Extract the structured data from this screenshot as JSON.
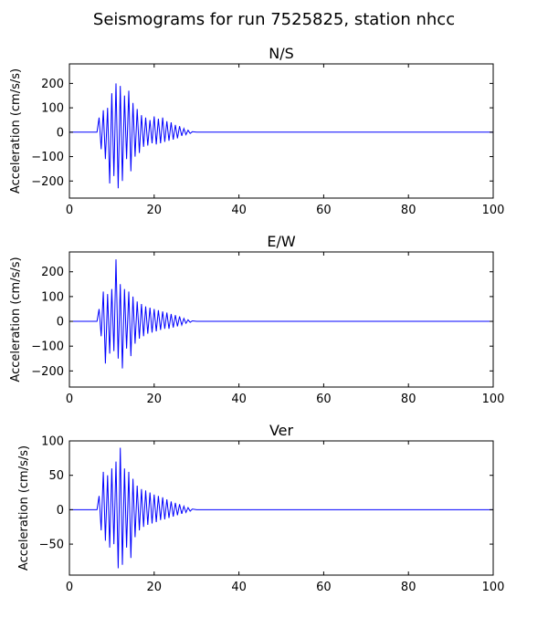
{
  "page": {
    "title": "Seismograms for run 7525825, station nhcc"
  },
  "colors": {
    "trace": "#0000ff",
    "axes": "#000000",
    "background": "#ffffff"
  },
  "chart_data": [
    {
      "type": "line",
      "title": "N/S",
      "xlabel": "",
      "ylabel": "Acceleration (cm/s/s)",
      "xlim": [
        0,
        100
      ],
      "ylim": [
        -270,
        280
      ],
      "xticks": [
        0,
        20,
        40,
        60,
        80,
        100
      ],
      "yticks": [
        -200,
        -100,
        0,
        100,
        200
      ],
      "grid": false,
      "series": [
        {
          "color": "#0000ff",
          "x": [
            0,
            6.5,
            7.0,
            7.5,
            8.0,
            8.5,
            9.0,
            9.5,
            10.0,
            10.5,
            11.0,
            11.5,
            12.0,
            12.5,
            13.0,
            13.5,
            14.0,
            14.5,
            15.0,
            15.5,
            16.0,
            16.5,
            17.0,
            17.5,
            18.0,
            18.5,
            19.0,
            19.5,
            20.0,
            20.5,
            21.0,
            21.5,
            22.0,
            22.5,
            23.0,
            23.5,
            24.0,
            24.5,
            25.0,
            25.5,
            26.0,
            26.5,
            27.0,
            27.5,
            28.0,
            28.5,
            29.0,
            30.0,
            100
          ],
          "y": [
            0,
            0,
            60,
            -70,
            90,
            -110,
            100,
            -210,
            160,
            -180,
            200,
            -230,
            190,
            -200,
            150,
            -110,
            170,
            -160,
            120,
            -100,
            95,
            -85,
            70,
            -60,
            60,
            -55,
            50,
            -45,
            65,
            -50,
            55,
            -45,
            60,
            -40,
            45,
            -35,
            40,
            -30,
            30,
            -25,
            25,
            -15,
            15,
            -10,
            8,
            -5,
            2,
            0,
            0
          ]
        }
      ]
    },
    {
      "type": "line",
      "title": "E/W",
      "xlabel": "",
      "ylabel": "Acceleration (cm/s/s)",
      "xlim": [
        0,
        100
      ],
      "ylim": [
        -265,
        280
      ],
      "xticks": [
        0,
        20,
        40,
        60,
        80,
        100
      ],
      "yticks": [
        -200,
        -100,
        0,
        100,
        200
      ],
      "grid": false,
      "series": [
        {
          "color": "#0000ff",
          "x": [
            0,
            6.5,
            7.0,
            7.5,
            8.0,
            8.5,
            9.0,
            9.5,
            10.0,
            10.5,
            11.0,
            11.5,
            12.0,
            12.5,
            13.0,
            13.5,
            14.0,
            14.5,
            15.0,
            15.5,
            16.0,
            16.5,
            17.0,
            17.5,
            18.0,
            18.5,
            19.0,
            19.5,
            20.0,
            20.5,
            21.0,
            21.5,
            22.0,
            22.5,
            23.0,
            23.5,
            24.0,
            24.5,
            25.0,
            25.5,
            26.0,
            26.5,
            27.0,
            27.5,
            28.0,
            28.5,
            29.0,
            30.0,
            100
          ],
          "y": [
            0,
            0,
            50,
            -60,
            120,
            -170,
            110,
            -130,
            130,
            -120,
            250,
            -150,
            150,
            -190,
            130,
            -110,
            120,
            -140,
            100,
            -90,
            80,
            -70,
            70,
            -60,
            60,
            -50,
            55,
            -45,
            50,
            -40,
            45,
            -35,
            40,
            -30,
            35,
            -30,
            30,
            -25,
            25,
            -20,
            20,
            -15,
            12,
            -8,
            6,
            -4,
            2,
            0,
            0
          ]
        }
      ]
    },
    {
      "type": "line",
      "title": "Ver",
      "xlabel": "",
      "ylabel": "Acceleration (cm/s/s)",
      "xlim": [
        0,
        100
      ],
      "ylim": [
        -95,
        100
      ],
      "xticks": [
        0,
        20,
        40,
        60,
        80,
        100
      ],
      "yticks": [
        -50,
        0,
        50,
        100
      ],
      "grid": false,
      "series": [
        {
          "color": "#0000ff",
          "x": [
            0,
            6.5,
            7.0,
            7.5,
            8.0,
            8.5,
            9.0,
            9.5,
            10.0,
            10.5,
            11.0,
            11.5,
            12.0,
            12.5,
            13.0,
            13.5,
            14.0,
            14.5,
            15.0,
            15.5,
            16.0,
            16.5,
            17.0,
            17.5,
            18.0,
            18.5,
            19.0,
            19.5,
            20.0,
            20.5,
            21.0,
            21.5,
            22.0,
            22.5,
            23.0,
            23.5,
            24.0,
            24.5,
            25.0,
            25.5,
            26.0,
            26.5,
            27.0,
            27.5,
            28.0,
            28.5,
            29.0,
            30.0,
            100
          ],
          "y": [
            0,
            0,
            20,
            -30,
            55,
            -45,
            50,
            -55,
            60,
            -50,
            70,
            -85,
            90,
            -80,
            60,
            -55,
            55,
            -70,
            45,
            -40,
            35,
            -30,
            30,
            -25,
            28,
            -22,
            25,
            -20,
            22,
            -18,
            20,
            -15,
            18,
            -14,
            15,
            -12,
            12,
            -10,
            10,
            -8,
            8,
            -6,
            5,
            -4,
            3,
            -2,
            1,
            0,
            0
          ]
        }
      ]
    }
  ]
}
